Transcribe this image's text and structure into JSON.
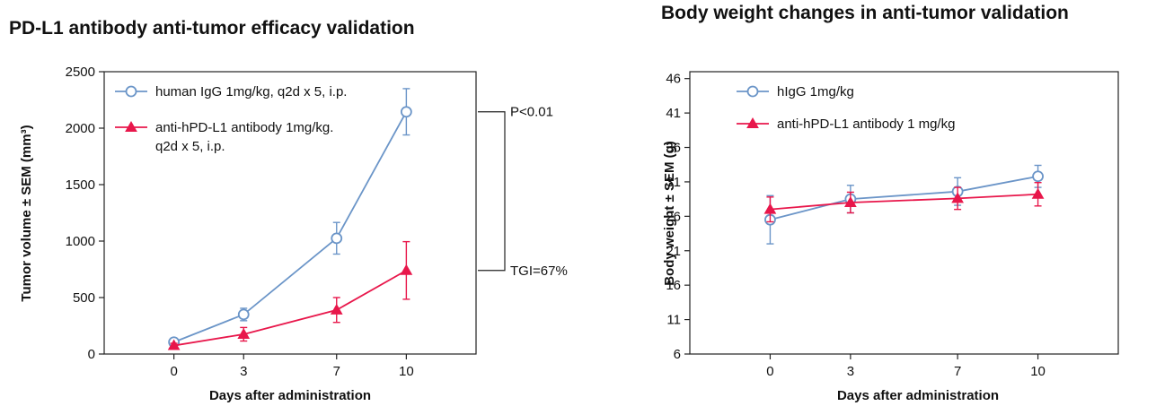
{
  "colors": {
    "series_a": "#6b95c8",
    "series_b": "#e8174b",
    "axis": "#222222"
  },
  "chart_data": [
    {
      "type": "line",
      "title": "PD-L1 antibody anti-tumor efficacy validation",
      "xlabel": "Days after administration",
      "ylabel": "Tumor volume ± SEM (mm³)",
      "x": [
        0,
        3,
        7,
        10
      ],
      "x_ticks": [
        "0",
        "3",
        "7",
        "10"
      ],
      "xlim": [
        -3,
        13
      ],
      "ylim": [
        0,
        2500
      ],
      "y_ticks": [
        0,
        500,
        1000,
        1500,
        2000,
        2500
      ],
      "grid": false,
      "legend_position": "top-left",
      "series": [
        {
          "name_lines": [
            "human IgG 1mg/kg, q2d x 5, i.p."
          ],
          "marker": "open-circle",
          "color": "#6b95c8",
          "values": [
            105,
            350,
            1025,
            2145
          ],
          "errors": [
            25,
            55,
            140,
            205
          ]
        },
        {
          "name_lines": [
            "anti-hPD-L1 antibody 1mg/kg.",
            "q2d x 5, i.p."
          ],
          "marker": "filled-triangle",
          "color": "#e8174b",
          "values": [
            75,
            175,
            390,
            740
          ],
          "errors": [
            20,
            60,
            110,
            255
          ]
        }
      ],
      "annotations": [
        "P<0.01",
        "TGI=67%"
      ]
    },
    {
      "type": "line",
      "title": "Body weight changes in anti-tumor validation",
      "xlabel": "Days after administration",
      "ylabel": "Body weight ± SEM (g)",
      "x": [
        0,
        3,
        7,
        10
      ],
      "x_ticks": [
        "0",
        "3",
        "7",
        "10"
      ],
      "xlim": [
        -3,
        13
      ],
      "ylim": [
        6,
        47
      ],
      "y_ticks": [
        6,
        11,
        16,
        21,
        26,
        31,
        36,
        41,
        46
      ],
      "grid": false,
      "legend_position": "top-left",
      "series": [
        {
          "name_lines": [
            "hIgG 1mg/kg"
          ],
          "marker": "open-circle",
          "color": "#6b95c8",
          "values": [
            25.5,
            28.5,
            29.6,
            31.8
          ],
          "errors": [
            3.5,
            2.0,
            2.0,
            1.6
          ]
        },
        {
          "name_lines": [
            "anti-hPD-L1 antibody 1 mg/kg"
          ],
          "marker": "filled-triangle",
          "color": "#e8174b",
          "values": [
            27.0,
            28.0,
            28.6,
            29.2
          ],
          "errors": [
            1.8,
            1.5,
            1.6,
            1.7
          ]
        }
      ],
      "annotations": []
    }
  ]
}
